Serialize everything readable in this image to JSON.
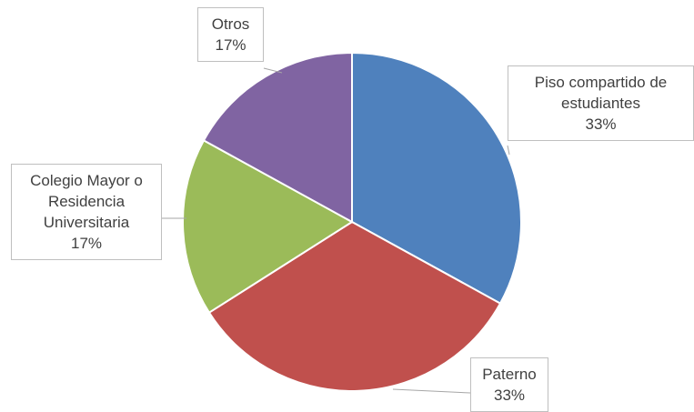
{
  "chart_data": {
    "type": "pie",
    "categories": [
      "Piso compartido de estudiantes",
      "Paterno",
      "Colegio Mayor o Residencia Universitaria",
      "Otros"
    ],
    "values": [
      33,
      33,
      17,
      17
    ],
    "value_labels": [
      "33%",
      "33%",
      "17%",
      "17%"
    ],
    "colors": [
      "#4f81bd",
      "#c0504d",
      "#9bbb59",
      "#8064a2"
    ]
  }
}
